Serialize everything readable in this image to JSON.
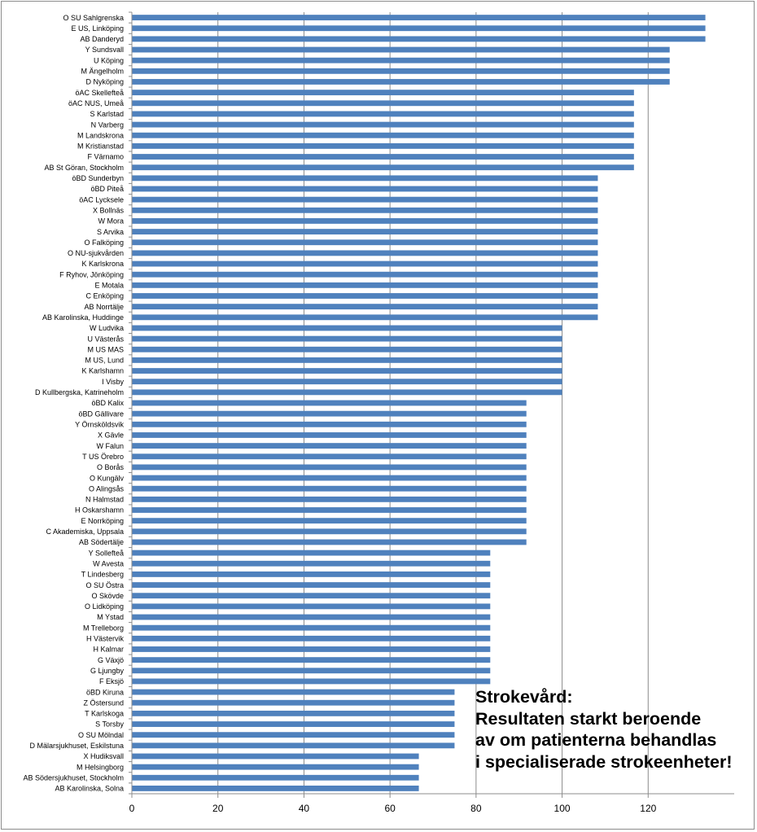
{
  "chart_data": {
    "type": "bar",
    "orientation": "horizontal",
    "xlim": [
      0,
      140
    ],
    "xticks": [
      0,
      20,
      40,
      60,
      80,
      100,
      120
    ],
    "grid": true,
    "bar_color": "#4f81bd",
    "categories": [
      "O SU Sahlgrenska",
      "E US, Linköping",
      "AB Danderyd",
      "Y Sundsvall",
      "U Köping",
      "M Ängelholm",
      "D Nyköping",
      "öAC Skellefteå",
      "öAC NUS, Umeå",
      "S Karlstad",
      "N Varberg",
      "M Landskrona",
      "M Kristianstad",
      "F Värnamo",
      "AB St Göran, Stockholm",
      "öBD Sunderbyn",
      "öBD Piteå",
      "öAC Lycksele",
      "X Bollnäs",
      "W Mora",
      "S Arvika",
      "O Falköping",
      "O NU-sjukvården",
      "K Karlskrona",
      "F Ryhov, Jönköping",
      "E Motala",
      "C Enköping",
      "AB Norrtälje",
      "AB Karolinska, Huddinge",
      "W Ludvika",
      "U Västerås",
      "M US MAS",
      "M US, Lund",
      "K Karlshamn",
      "I Visby",
      "D Kullbergska, Katrineholm",
      "öBD Kalix",
      "öBD Gällivare",
      "Y Örnsköldsvik",
      "X Gävle",
      "W Falun",
      "T US Örebro",
      "O Borås",
      "O Kungälv",
      "O Alingsås",
      "N Halmstad",
      "H Oskarshamn",
      "E Norrköping",
      "C Akademiska, Uppsala",
      "AB Södertälje",
      "Y Sollefteå",
      "W Avesta",
      "T Lindesberg",
      "O SU Östra",
      "O Skövde",
      "O Lidköping",
      "M Ystad",
      "M Trelleborg",
      "H Västervik",
      "H Kalmar",
      "G Växjö",
      "G Ljungby",
      "F Eksjö",
      "öBD Kiruna",
      "Z Östersund",
      "T Karlskoga",
      "S Torsby",
      "O SU Mölndal",
      "D Mälarsjukhuset, Eskilstuna",
      "X Hudiksvall",
      "M Helsingborg",
      "AB Södersjukhuset, Stockholm",
      "AB Karolinska, Solna"
    ],
    "values": [
      133.3,
      133.3,
      133.3,
      125,
      125,
      125,
      125,
      116.7,
      116.7,
      116.7,
      116.7,
      116.7,
      116.7,
      116.7,
      116.7,
      108.3,
      108.3,
      108.3,
      108.3,
      108.3,
      108.3,
      108.3,
      108.3,
      108.3,
      108.3,
      108.3,
      108.3,
      108.3,
      108.3,
      100,
      100,
      100,
      100,
      100,
      100,
      100,
      91.7,
      91.7,
      91.7,
      91.7,
      91.7,
      91.7,
      91.7,
      91.7,
      91.7,
      91.7,
      91.7,
      91.7,
      91.7,
      91.7,
      83.3,
      83.3,
      83.3,
      83.3,
      83.3,
      83.3,
      83.3,
      83.3,
      83.3,
      83.3,
      83.3,
      83.3,
      83.3,
      75,
      75,
      75,
      75,
      75,
      75,
      66.7,
      66.7,
      66.7,
      66.7
    ],
    "annotation": [
      "Strokevård:",
      "Resultaten starkt beroende",
      "av om patienterna behandlas",
      "i specialiserade strokeenheter!"
    ]
  }
}
